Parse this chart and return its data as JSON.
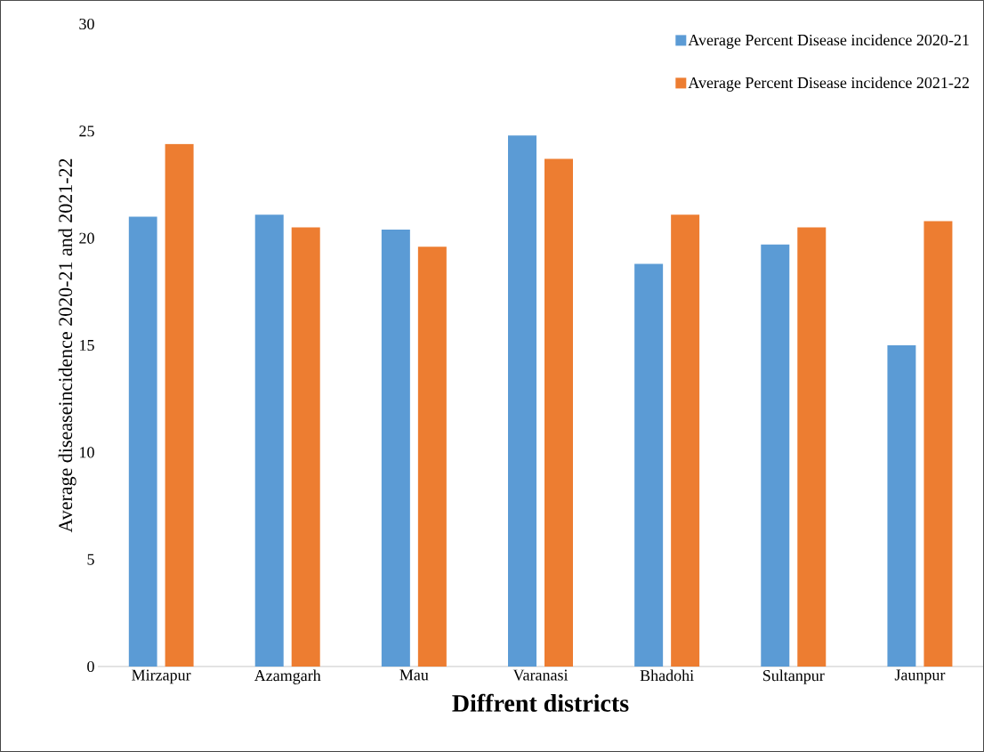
{
  "chart_data": {
    "type": "bar",
    "xlabel": "Diffrent districts",
    "ylabel": "Average diseaseincidence 2020-21 and 2021-22",
    "categories": [
      "Mirzapur",
      "Azamgarh",
      "Mau",
      "Varanasi",
      "Bhadohi",
      "Sultanpur",
      "Jaunpur"
    ],
    "series": [
      {
        "name": "Average Percent Disease incidence 2020-21",
        "color": "#5b9bd5",
        "values": [
          21.0,
          21.1,
          20.4,
          24.8,
          18.8,
          19.7,
          15.0
        ]
      },
      {
        "name": "Average Percent Disease incidence 2021-22",
        "color": "#ed7d31",
        "values": [
          24.4,
          20.5,
          19.6,
          23.7,
          21.1,
          20.5,
          20.8
        ]
      }
    ],
    "ylim": [
      0,
      30
    ],
    "yticks": [
      0,
      5,
      10,
      15,
      20,
      25,
      30
    ],
    "legend": "top right",
    "grid": false
  }
}
